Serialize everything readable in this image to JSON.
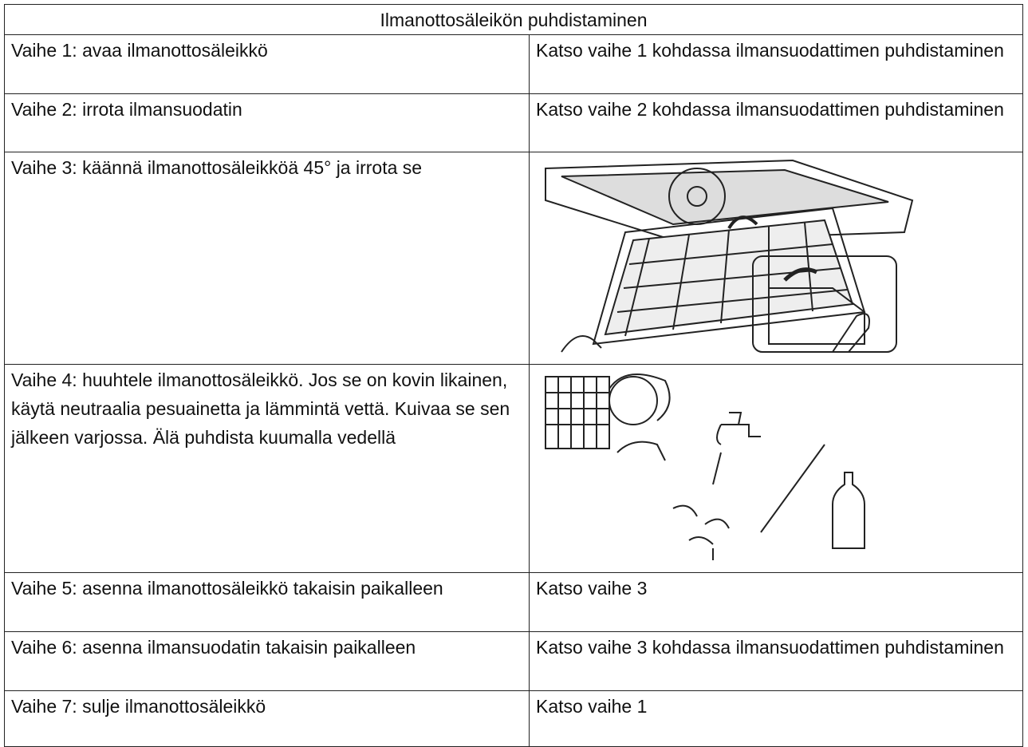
{
  "table": {
    "title": "Ilmanottosäleikön puhdistaminen",
    "rows": [
      [
        "Vaihe 1: avaa ilmanottosäleikkö",
        "Katso vaihe 1 kohdassa ilmansuodattimen puhdistaminen"
      ],
      [
        "Vaihe 2: irrota ilmansuodatin",
        "Katso vaihe 2 kohdassa ilmansuodattimen puhdistaminen"
      ],
      [
        "Vaihe 3: käännä ilmanottosäleikköä 45° ja irrota se"
      ],
      [
        "Vaihe 4: huuhtele ilmanottosäleikkö. Jos se on kovin likainen, käytä neutraalia pesuainetta ja lämmintä vettä. Kuivaa se sen jälkeen varjossa. Älä puhdista kuumalla vedellä"
      ],
      [
        "Vaihe 5: asenna ilmanottosäleikkö takaisin paikalleen",
        "Katso vaihe 3"
      ],
      [
        "Vaihe 6: asenna ilmansuodatin takaisin paikalleen",
        "Katso vaihe 3 kohdassa ilmansuodattimen puhdistaminen"
      ],
      [
        "Vaihe 7: sulje ilmanottosäleikkö",
        "Katso vaihe 1"
      ]
    ]
  }
}
